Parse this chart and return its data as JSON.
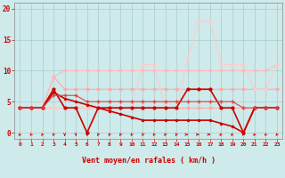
{
  "xlabel": "Vent moyen/en rafales ( km/h )",
  "x": [
    0,
    1,
    2,
    3,
    4,
    5,
    6,
    7,
    8,
    9,
    10,
    11,
    12,
    13,
    14,
    15,
    16,
    17,
    18,
    19,
    20,
    21,
    22,
    23
  ],
  "bg_color": "#ceeaea",
  "grid_color": "#aacccc",
  "ylim": [
    -1,
    21
  ],
  "yticks": [
    0,
    5,
    10,
    15,
    20
  ],
  "series": [
    {
      "y": [
        4,
        4,
        4,
        4,
        4,
        4,
        4,
        4,
        4,
        4,
        4,
        4,
        4,
        4,
        4,
        4,
        4,
        4,
        4,
        4,
        4,
        4,
        4,
        4
      ],
      "color": "#ffaaaa",
      "lw": 0.8,
      "marker": "o",
      "ms": 2
    },
    {
      "y": [
        4,
        4,
        4,
        9,
        7,
        7,
        7,
        7,
        7,
        7,
        7,
        7,
        7,
        7,
        7,
        7,
        7,
        7,
        7,
        7,
        7,
        7,
        7,
        7
      ],
      "color": "#ffaaaa",
      "lw": 0.8,
      "marker": "o",
      "ms": 2
    },
    {
      "y": [
        4,
        4,
        4,
        9,
        10,
        10,
        10,
        10,
        10,
        10,
        10,
        10,
        10,
        10,
        10,
        10,
        10,
        10,
        10,
        10,
        10,
        10,
        10,
        11
      ],
      "color": "#ffbbbb",
      "lw": 0.8,
      "marker": "o",
      "ms": 2
    },
    {
      "y": [
        4,
        4,
        4,
        4,
        4,
        4,
        4,
        4,
        4,
        4,
        4,
        11,
        11,
        4,
        4,
        12,
        18,
        18,
        11,
        11,
        11,
        7,
        7,
        11
      ],
      "color": "#ffcccc",
      "lw": 0.8,
      "marker": "o",
      "ms": 2
    },
    {
      "y": [
        4,
        4,
        4,
        6.5,
        5.5,
        5,
        4.5,
        4,
        3.5,
        3,
        2.5,
        2,
        2,
        2,
        2,
        2,
        2,
        2,
        1.5,
        1,
        0,
        4,
        4,
        4
      ],
      "color": "#cc0000",
      "lw": 1.2,
      "marker": "o",
      "ms": 1.5
    },
    {
      "y": [
        4,
        4,
        4,
        7,
        4,
        4,
        0,
        4,
        4,
        4,
        4,
        4,
        4,
        4,
        4,
        7,
        7,
        7,
        4,
        4,
        0,
        4,
        4,
        4
      ],
      "color": "#cc0000",
      "lw": 1.2,
      "marker": "o",
      "ms": 2
    },
    {
      "y": [
        4,
        4,
        4,
        6,
        6,
        6,
        5,
        5,
        5,
        5,
        5,
        5,
        5,
        5,
        5,
        5,
        5,
        5,
        5,
        5,
        4,
        4,
        4,
        4
      ],
      "color": "#dd4444",
      "lw": 0.8,
      "marker": "+",
      "ms": 3
    }
  ],
  "wind_arrows_angles": [
    225,
    210,
    210,
    200,
    180,
    175,
    175,
    195,
    200,
    200,
    205,
    195,
    205,
    200,
    195,
    90,
    90,
    90,
    225,
    220,
    210,
    215,
    210,
    210
  ]
}
